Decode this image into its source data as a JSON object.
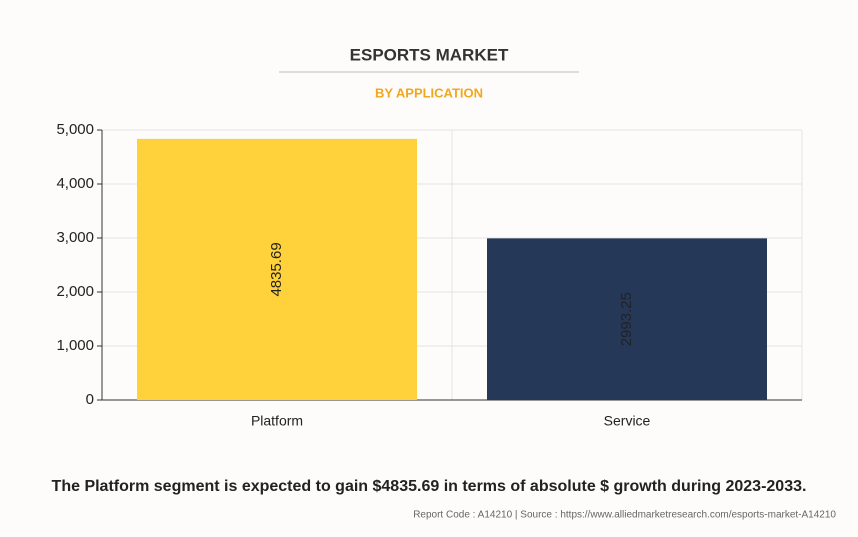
{
  "chart_data": {
    "type": "bar",
    "title": "ESPORTS MARKET",
    "subtitle": "BY APPLICATION",
    "categories": [
      "Platform",
      "Service"
    ],
    "values": [
      4835.69,
      2993.25
    ],
    "colors": [
      "#ffd13b",
      "#253858"
    ],
    "ylim": [
      0,
      5000
    ],
    "yticks": [
      0,
      {
        "value": 1000,
        "label": "1,000"
      },
      {
        "value": 2000,
        "label": "2,000"
      },
      {
        "value": 3000,
        "label": "3,000"
      },
      {
        "value": 4000,
        "label": "4,000"
      },
      {
        "value": 5000,
        "label": "5,000"
      }
    ],
    "grid": true,
    "annotations": [
      "The Platform segment is expected to gain $4835.69 in terms of absolute $ growth during 2023-2033.",
      "Report Code : A14210  |  Source : https://www.alliedmarketresearch.com/esports-market-A14210"
    ]
  }
}
